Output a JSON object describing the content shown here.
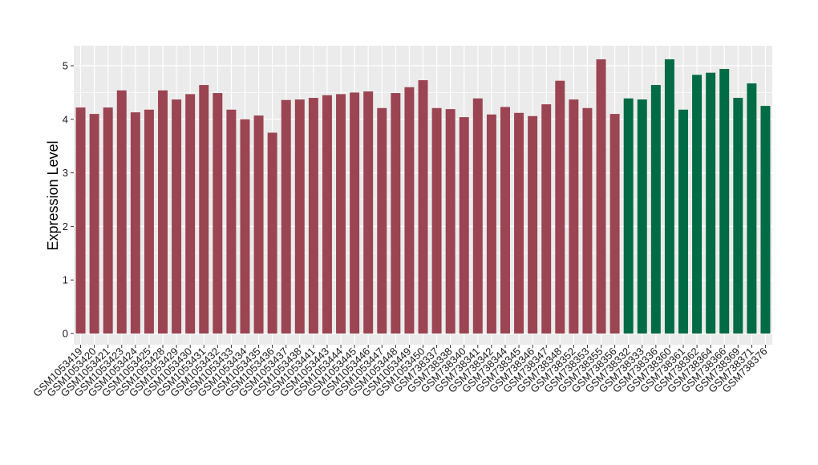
{
  "chart_data": {
    "type": "bar",
    "title": "",
    "xlabel": "",
    "ylabel": "Expression Level",
    "ylim": [
      -0.2,
      5.35
    ],
    "yticks": [
      0,
      1,
      2,
      3,
      4,
      5
    ],
    "grid": true,
    "legend": "none",
    "colors": {
      "group1": "#9b4452",
      "group2": "#006b45",
      "panel": "#ebebeb",
      "gridline": "#ffffff"
    },
    "categories": [
      "GSM1053419",
      "GSM1053420",
      "GSM1053421",
      "GSM1053423",
      "GSM1053424",
      "GSM1053425",
      "GSM1053428",
      "GSM1053429",
      "GSM1053430",
      "GSM1053431",
      "GSM1053432",
      "GSM1053433",
      "GSM1053434",
      "GSM1053435",
      "GSM1053436",
      "GSM1053437",
      "GSM1053438",
      "GSM1053441",
      "GSM1053443",
      "GSM1053444",
      "GSM1053445",
      "GSM1053446",
      "GSM1053447",
      "GSM1053448",
      "GSM1053449",
      "GSM1053450",
      "GSM738337",
      "GSM738338",
      "GSM738340",
      "GSM738341",
      "GSM738342",
      "GSM738344",
      "GSM738345",
      "GSM738346",
      "GSM738347",
      "GSM738348",
      "GSM738352",
      "GSM738353",
      "GSM738355",
      "GSM738356",
      "GSM738332",
      "GSM738333",
      "GSM738336",
      "GSM738360",
      "GSM738361",
      "GSM738362",
      "GSM738364",
      "GSM738366",
      "GSM738369",
      "GSM738371",
      "GSM738376"
    ],
    "values": [
      4.22,
      4.1,
      4.22,
      4.54,
      4.13,
      4.18,
      4.54,
      4.37,
      4.47,
      4.64,
      4.49,
      4.18,
      4.0,
      4.07,
      3.75,
      4.36,
      4.37,
      4.4,
      4.45,
      4.47,
      4.5,
      4.52,
      4.21,
      4.49,
      4.6,
      4.73,
      4.21,
      4.19,
      4.04,
      4.39,
      4.09,
      4.23,
      4.12,
      4.06,
      4.28,
      4.72,
      4.37,
      4.21,
      5.12,
      4.1,
      4.39,
      4.37,
      4.64,
      5.12,
      4.18,
      4.83,
      4.87,
      4.94,
      4.4,
      4.67,
      4.25
    ],
    "groups": [
      1,
      1,
      1,
      1,
      1,
      1,
      1,
      1,
      1,
      1,
      1,
      1,
      1,
      1,
      1,
      1,
      1,
      1,
      1,
      1,
      1,
      1,
      1,
      1,
      1,
      1,
      1,
      1,
      1,
      1,
      1,
      1,
      1,
      1,
      1,
      1,
      1,
      1,
      1,
      1,
      2,
      2,
      2,
      2,
      2,
      2,
      2,
      2,
      2,
      2,
      2
    ]
  }
}
